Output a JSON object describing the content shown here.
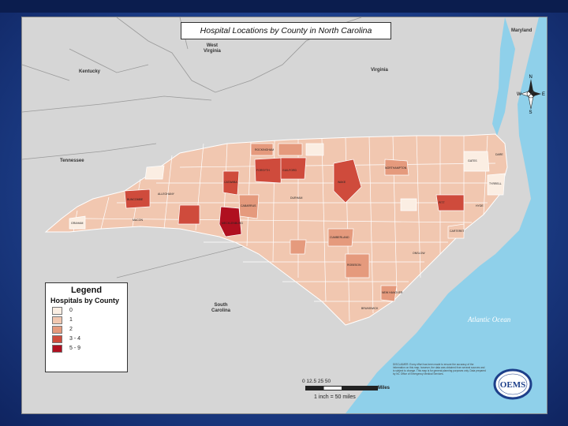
{
  "title": "Hospital Locations by County in North Carolina",
  "states": {
    "maryland": "Maryland",
    "west_virginia": "West\nVirginia",
    "kentucky": "Kentucky",
    "virginia": "Virginia",
    "tennessee": "Tennessee",
    "south_carolina": "South\nCarolina"
  },
  "ocean": "Atlantic Ocean",
  "compass": {
    "n": "N",
    "e": "E",
    "s": "S",
    "w": "W"
  },
  "legend": {
    "title": "Legend",
    "subtitle": "Hospitals by County",
    "items": [
      {
        "label": "0",
        "color": "#fbeee3"
      },
      {
        "label": "1",
        "color": "#f1c7b0"
      },
      {
        "label": "2",
        "color": "#e59a7d"
      },
      {
        "label": "3 - 4",
        "color": "#cf4b3c"
      },
      {
        "label": "5 - 9",
        "color": "#b01020"
      }
    ]
  },
  "counties": [
    {
      "name": "ALLEGHANY",
      "color": "#f1c7b0"
    },
    {
      "name": "ROCKINGHAM",
      "color": "#e59a7d"
    },
    {
      "name": "GUILFORD",
      "color": "#cf4b3c"
    },
    {
      "name": "FORSYTH",
      "color": "#cf4b3c"
    },
    {
      "name": "WAKE",
      "color": "#cf4b3c"
    },
    {
      "name": "MECKLENBURG",
      "color": "#b01020"
    },
    {
      "name": "BUNCOMBE",
      "color": "#cf4b3c"
    },
    {
      "name": "CATAWBA",
      "color": "#cf4b3c"
    },
    {
      "name": "CABARRUS",
      "color": "#e59a7d"
    },
    {
      "name": "DURHAM",
      "color": "#cf4b3c"
    },
    {
      "name": "CUMBERLAND",
      "color": "#e59a7d"
    },
    {
      "name": "NEW HANOVER",
      "color": "#e59a7d"
    },
    {
      "name": "PITT",
      "color": "#e59a7d"
    },
    {
      "name": "NORTHAMPTON",
      "color": "#f1c7b0"
    },
    {
      "name": "GATES",
      "color": "#fbeee3"
    },
    {
      "name": "TYRRELL",
      "color": "#fbeee3"
    },
    {
      "name": "MACON",
      "color": "#f1c7b0"
    },
    {
      "name": "GRAHAM",
      "color": "#fbeee3"
    },
    {
      "name": "CARTERET",
      "color": "#f1c7b0"
    },
    {
      "name": "ONSLOW",
      "color": "#e59a7d"
    },
    {
      "name": "ROBESON",
      "color": "#e59a7d"
    },
    {
      "name": "BRUNSWICK",
      "color": "#e59a7d"
    },
    {
      "name": "HYDE",
      "color": "#fbeee3"
    },
    {
      "name": "DARE",
      "color": "#f1c7b0"
    }
  ],
  "disclaimer": "DISCLAIMER: Every effort has been made to ensure the accuracy of the information on this map; however, the data was obtained from several sources and is subject to change. This map is for general planning purposes only. Data prepared by NC Office of Emergency Medical Services.",
  "scale": {
    "ticks": "0 12.5 25 50",
    "unit": "Miles",
    "ratio": "1 inch = 50 miles"
  },
  "logo_text": "OEMS"
}
